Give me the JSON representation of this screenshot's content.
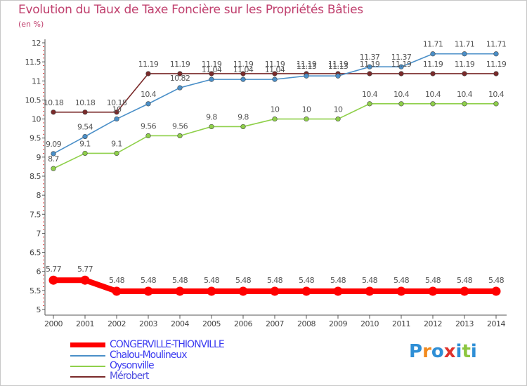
{
  "title": "Evolution du Taux de Taxe Foncière sur les Propriétés Bâties",
  "unit_label": "(en %)",
  "logo": {
    "text": "Proxiti",
    "letters": [
      "P",
      "r",
      "o",
      "x",
      "i",
      "t",
      "i"
    ],
    "colors": [
      "#2f8fd6",
      "#f28a1e",
      "#2f8fd6",
      "#e0312b",
      "#2f8fd6",
      "#8cc63f",
      "#2f8fd6"
    ]
  },
  "chart_data": {
    "type": "line",
    "title": "Evolution du Taux de Taxe Foncière sur les Propriétés Bâties",
    "ylabel": "(en %)",
    "xlabel": "",
    "x": [
      "2000",
      "2001",
      "2002",
      "2003",
      "2004",
      "2005",
      "2006",
      "2007",
      "2008",
      "2009",
      "2010",
      "2011",
      "2012",
      "2013",
      "2014"
    ],
    "y_ticks": [
      "5",
      "5.5",
      "6",
      "6.5",
      "7",
      "7.5",
      "8",
      "8.5",
      "9",
      "9.5",
      "10",
      "10.5",
      "11",
      "11.5",
      "12"
    ],
    "ylim": [
      5,
      12
    ],
    "grid": false,
    "legend_position": "bottom-left",
    "series": [
      {
        "name": "CONGERVILLE-THIONVILLE",
        "color": "#ff0000",
        "values": [
          5.77,
          5.77,
          5.48,
          5.48,
          5.48,
          5.48,
          5.48,
          5.48,
          5.48,
          5.48,
          5.48,
          5.48,
          5.48,
          5.48,
          5.48
        ],
        "labels": [
          "5.77",
          "5.77",
          "5.48",
          "5.48",
          "5.48",
          "5.48",
          "5.48",
          "5.48",
          "5.48",
          "5.48",
          "5.48",
          "5.48",
          "5.48",
          "5.48",
          "5.48"
        ]
      },
      {
        "name": "Chalou-Moulineux",
        "color": "#4a8fc8",
        "values": [
          9.09,
          9.54,
          10,
          10.4,
          10.82,
          11.04,
          11.04,
          11.04,
          11.13,
          11.13,
          11.37,
          11.37,
          11.71,
          11.71,
          11.71
        ],
        "labels": [
          "9.09",
          "9.54",
          "10",
          "10.4",
          "10.82",
          "11.04",
          "11.04",
          "11.04",
          "11.13",
          "11.13",
          "11.37",
          "11.37",
          "11.71",
          "11.71",
          "11.71"
        ]
      },
      {
        "name": "Oysonville",
        "color": "#8fd04a",
        "values": [
          8.7,
          9.1,
          9.1,
          9.56,
          9.56,
          9.8,
          9.8,
          10,
          10,
          10,
          10.4,
          10.4,
          10.4,
          10.4,
          10.4
        ],
        "labels": [
          "8.7",
          "9.1",
          "9.1",
          "9.56",
          "9.56",
          "9.8",
          "9.8",
          "10",
          "10",
          "10",
          "10.4",
          "10.4",
          "10.4",
          "10.4",
          "10.4"
        ]
      },
      {
        "name": "Mérobert",
        "color": "#7a2a2a",
        "values": [
          10.18,
          10.18,
          10.18,
          11.19,
          11.19,
          11.19,
          11.19,
          11.19,
          11.19,
          11.19,
          11.19,
          11.19,
          11.19,
          11.19,
          11.19
        ],
        "labels": [
          "10.18",
          "10.18",
          "10.18",
          "11.19",
          "11.19",
          "11.19",
          "11.19",
          "11.19",
          "11.19",
          "11.19",
          "11.19",
          "11.19",
          "11.19",
          "11.19",
          "11.19"
        ]
      }
    ]
  }
}
